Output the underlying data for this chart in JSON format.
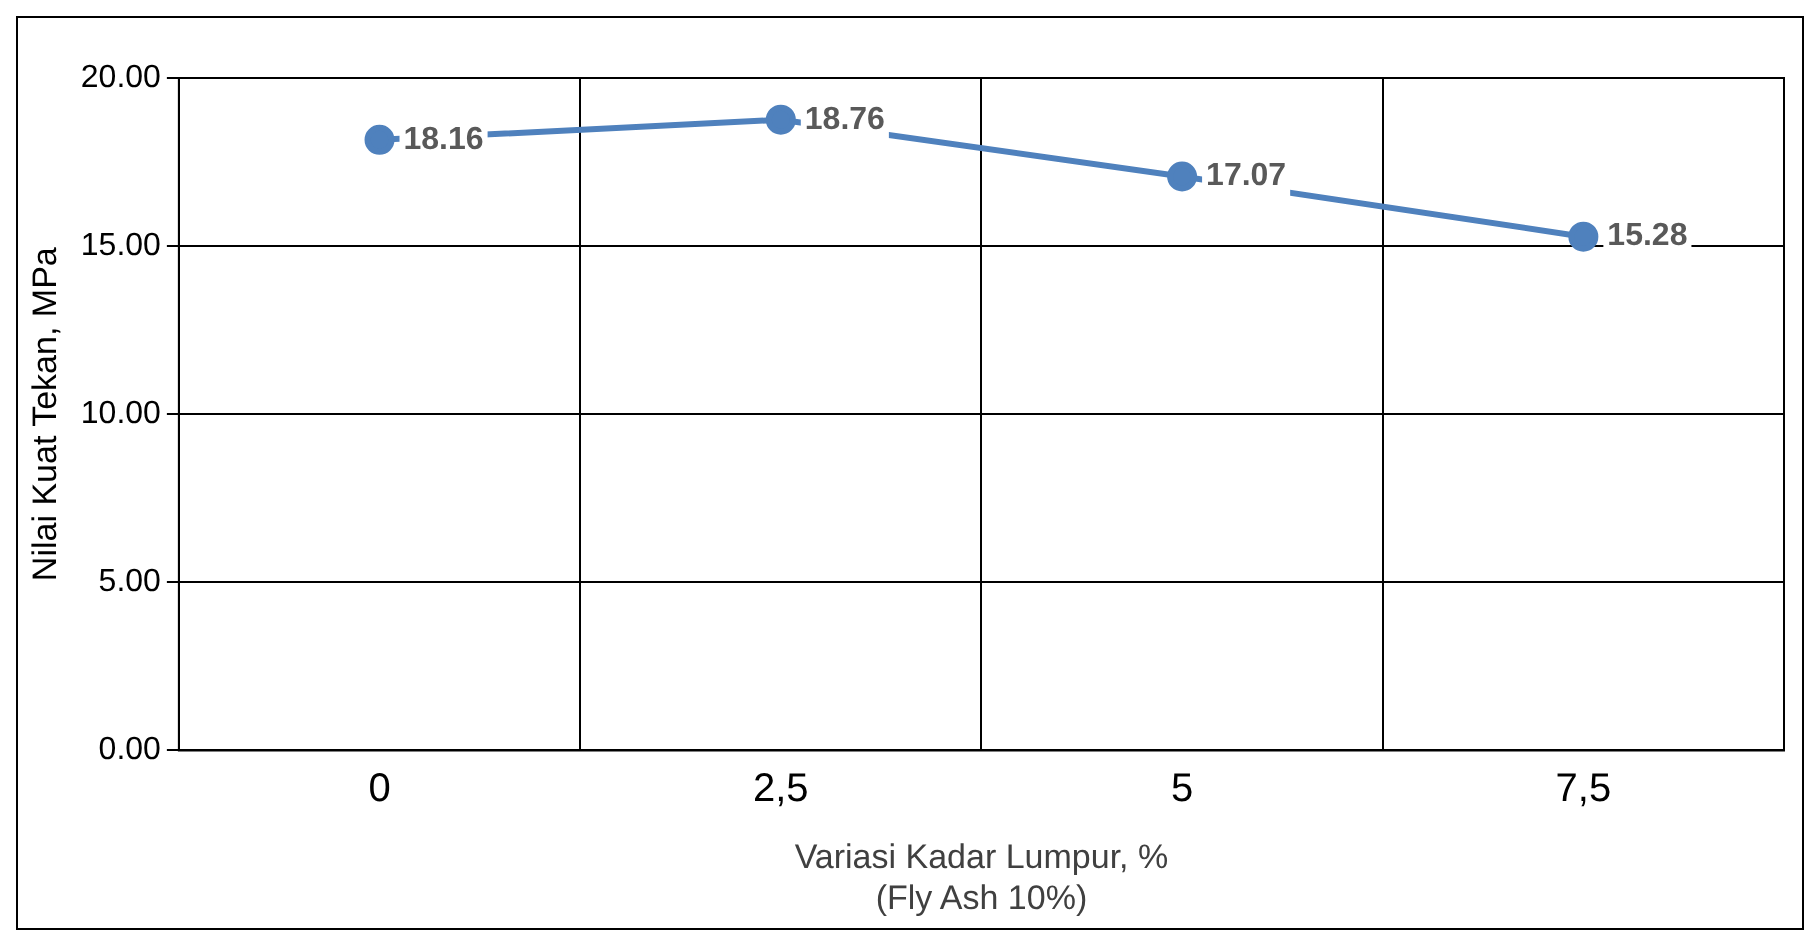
{
  "chart_data": {
    "type": "line",
    "xlabel": "Variasi Kadar Lumpur, %\n(Fly Ash 10%)",
    "ylabel": "Nilai Kuat Tekan, MPa",
    "categories": [
      "0",
      "2,5",
      "5",
      "7,5"
    ],
    "series": [
      {
        "color": "#4f81bd",
        "values": [
          18.16,
          18.76,
          17.07,
          15.28
        ]
      }
    ],
    "ylim": [
      0,
      20
    ],
    "yticks": [
      {
        "value": 0,
        "label": "0.00"
      },
      {
        "value": 5,
        "label": "5.00"
      },
      {
        "value": 10,
        "label": "10.00"
      },
      {
        "value": 15,
        "label": "15.00"
      },
      {
        "value": 20,
        "label": "20.00"
      }
    ],
    "grid": true,
    "marker": "circle",
    "line_style": "solid",
    "data_labels": true,
    "legend": false
  }
}
